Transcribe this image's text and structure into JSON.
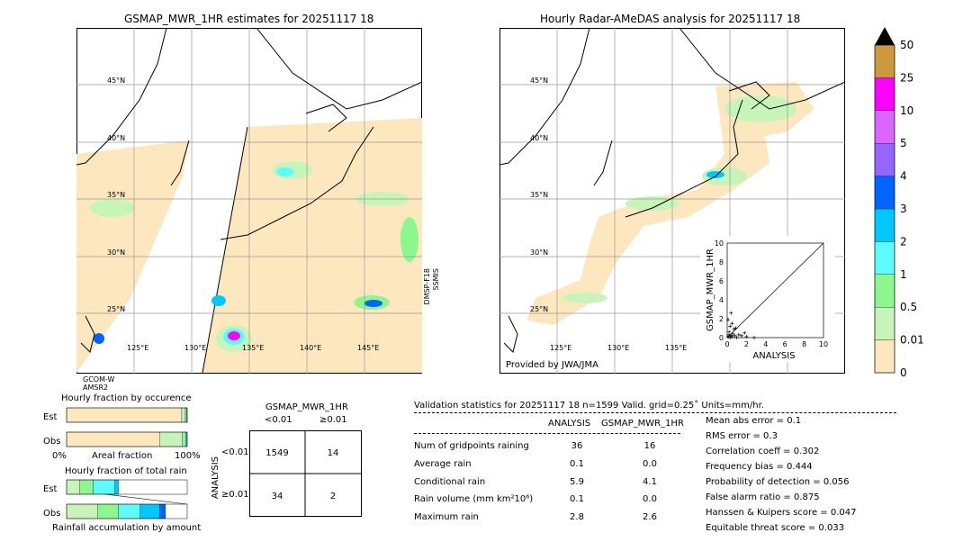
{
  "left_map": {
    "title": "GSMAP_MWR_1HR estimates for 20251117 18",
    "lat_labels": [
      "45°N",
      "40°N",
      "35°N",
      "30°N",
      "25°N"
    ],
    "lon_labels": [
      "125°E",
      "130°E",
      "135°E",
      "140°E",
      "145°E"
    ],
    "satellite_left": "GCOM-W\nAMSR2",
    "satellite_left_line1": "GCOM-W",
    "satellite_left_line2": "AMSR2",
    "satellite_right_line1": "DMSP-F18",
    "satellite_right_line2": "SSMIS"
  },
  "right_map": {
    "title": "Hourly Radar-AMeDAS analysis for 20251117 18",
    "lat_labels": [
      "45°N",
      "40°N",
      "35°N",
      "30°N",
      "25°N"
    ],
    "lon_labels": [
      "125°E",
      "130°E",
      "135°E"
    ],
    "credit": "Provided by JWA/JMA"
  },
  "colorbar": {
    "levels": [
      "0",
      "0.01",
      "0.5",
      "1",
      "2",
      "3",
      "4",
      "5",
      "10",
      "25",
      "50"
    ],
    "colors": [
      "#fde7bf",
      "#c7f5b9",
      "#8cf78c",
      "#5cfcfc",
      "#00c8ff",
      "#0064ff",
      "#9664ff",
      "#dc64ff",
      "#ff00ff",
      "#cc9a3c",
      "#000000"
    ]
  },
  "scatter": {
    "xlabel": "ANALYSIS",
    "ylabel": "GSMAP_MWR_1HR",
    "ticks": [
      "0",
      "2",
      "4",
      "6",
      "8",
      "10"
    ]
  },
  "fraction_charts": {
    "occurrence_title": "Hourly fraction by occurence",
    "total_title": "Hourly fraction of total rain",
    "row_est": "Est",
    "row_obs": "Obs",
    "axis_left": "0%",
    "axis_mid": "Areal fraction",
    "axis_right": "100%",
    "bottom_label": "Rainfall accumulation by amount"
  },
  "contingency": {
    "title": "GSMAP_MWR_1HR",
    "col_lt": "<0.01",
    "col_ge": "≥0.01",
    "row_axis": "ANALYSIS",
    "row_lt": "<0.01",
    "row_ge": "≥0.01",
    "a": "1549",
    "b": "14",
    "c": "34",
    "d": "2"
  },
  "validation": {
    "header": "Validation statistics for 20251117 18  n=1599 Valid. grid=0.25˚ Units=mm/hr.",
    "col_analysis": "ANALYSIS",
    "col_gsmap": "GSMAP_MWR_1HR",
    "rows": [
      {
        "label": "Num of gridpoints raining",
        "analysis": "36",
        "gsmap": "16"
      },
      {
        "label": "Average rain",
        "analysis": "0.1",
        "gsmap": "0.0"
      },
      {
        "label": "Conditional rain",
        "analysis": "5.9",
        "gsmap": "4.1"
      },
      {
        "label": "Rain volume (mm km²10⁶)",
        "analysis": "0.1",
        "gsmap": "0.0"
      },
      {
        "label": "Maximum rain",
        "analysis": "2.8",
        "gsmap": "2.6"
      }
    ],
    "scores": [
      "Mean abs error =    0.1",
      "RMS error =    0.3",
      "Correlation coeff =  0.302",
      "Frequency bias =  0.444",
      "Probability of detection =  0.056",
      "False alarm ratio =  0.875",
      "Hanssen & Kuipers score =  0.047",
      "Equitable threat score =  0.033"
    ]
  },
  "chart_data": [
    {
      "type": "scatter",
      "xlabel": "ANALYSIS",
      "ylabel": "GSMAP_MWR_1HR",
      "xlim": [
        0,
        10
      ],
      "ylim": [
        0,
        10
      ],
      "points": [
        [
          0.1,
          0.1
        ],
        [
          0.2,
          0.3
        ],
        [
          0.3,
          0.0
        ],
        [
          0.4,
          0.2
        ],
        [
          0.5,
          0.1
        ],
        [
          0.6,
          0.4
        ],
        [
          0.2,
          0.6
        ],
        [
          0.8,
          0.2
        ],
        [
          1.0,
          0.0
        ],
        [
          1.2,
          0.3
        ],
        [
          0.3,
          1.2
        ],
        [
          0.5,
          1.5
        ],
        [
          0.7,
          0.9
        ],
        [
          1.5,
          0.2
        ],
        [
          2.0,
          0.1
        ],
        [
          2.8,
          0.0
        ],
        [
          0.1,
          1.9
        ],
        [
          0.9,
          1.0
        ],
        [
          1.8,
          0.5
        ],
        [
          0.4,
          2.6
        ]
      ]
    },
    {
      "type": "bar",
      "title": "Hourly fraction by occurence",
      "categories": [
        "Est",
        "Obs"
      ],
      "series": [
        {
          "values": [
            0.955,
            0.77
          ]
        },
        {
          "values": [
            0.03,
            0.19
          ]
        },
        {
          "values": [
            0.012,
            0.03
          ]
        },
        {
          "values": [
            0.003,
            0.01
          ]
        }
      ]
    },
    {
      "type": "bar",
      "title": "Hourly fraction of total rain",
      "categories": [
        "Est",
        "Obs"
      ],
      "series": [
        {
          "values": [
            0.11,
            0.26
          ]
        },
        {
          "values": [
            0.11,
            0.17
          ]
        },
        {
          "values": [
            0.18,
            0.18
          ]
        },
        {
          "values": [
            0.03,
            0.16
          ]
        },
        {
          "values": [
            0.0,
            0.05
          ]
        }
      ]
    }
  ]
}
